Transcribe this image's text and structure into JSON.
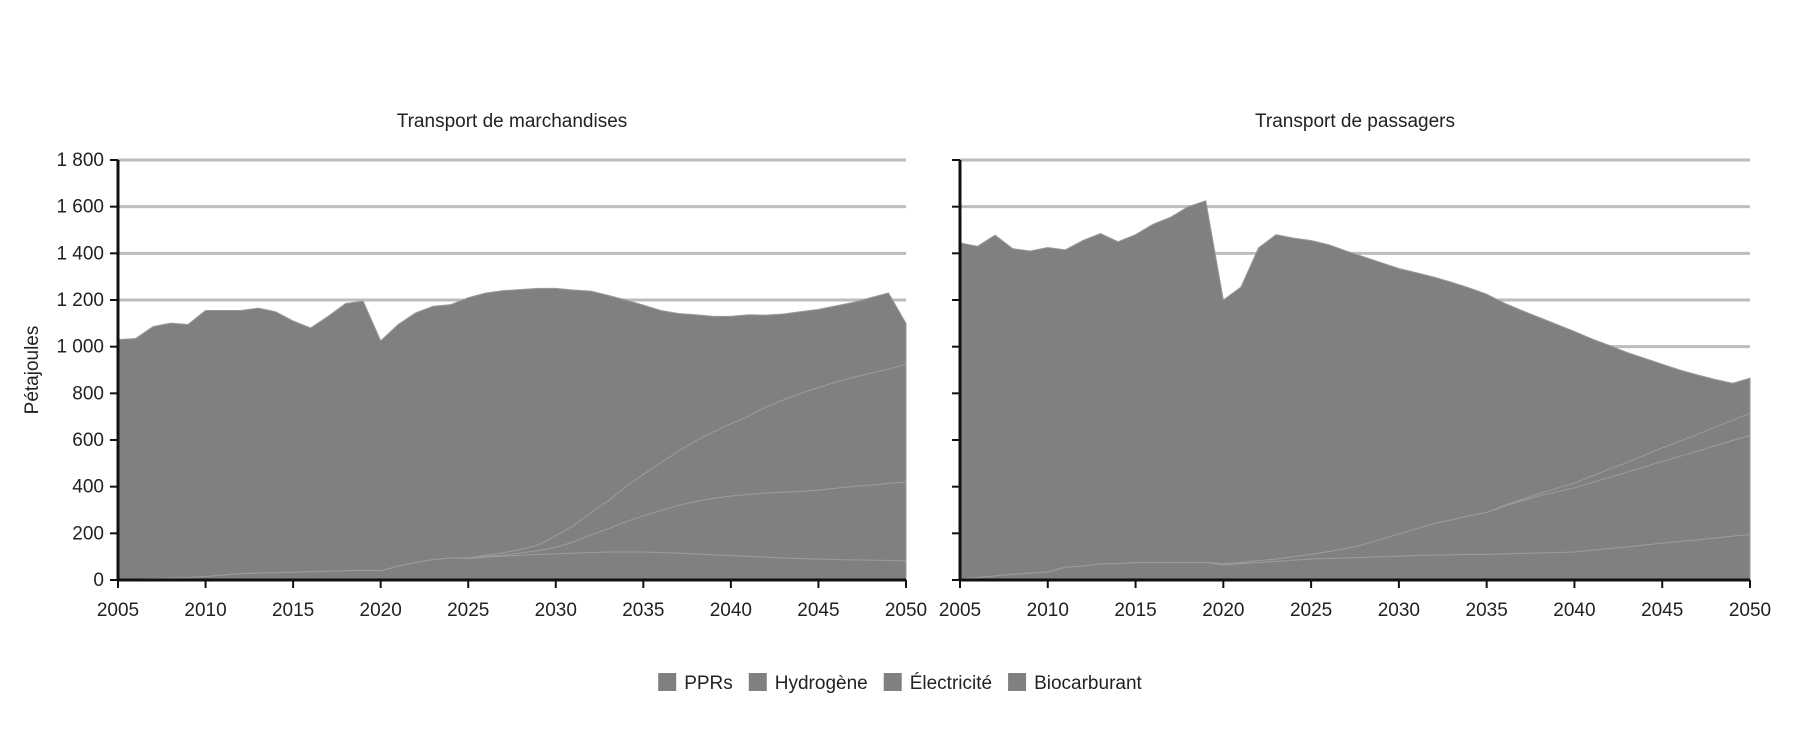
{
  "chart_data": {
    "type": "area",
    "stacked": true,
    "ylabel": "Pétajoules",
    "ylim": [
      0,
      1800
    ],
    "yticks": [
      0,
      200,
      400,
      600,
      800,
      1000,
      1200,
      1400,
      1600,
      1800
    ],
    "ytick_labels": [
      "0",
      "200",
      "400",
      "600",
      "800",
      "1 000",
      "1 200",
      "1 400",
      "1 600",
      "1 800"
    ],
    "xlim": [
      2005,
      2050
    ],
    "xticks": [
      2005,
      2010,
      2015,
      2020,
      2025,
      2030,
      2035,
      2040,
      2045,
      2050
    ],
    "grid": true,
    "legend_position": "bottom",
    "legend": [
      "PPRs",
      "Hydrogène",
      "Électricité",
      "Biocarburant"
    ],
    "colors": {
      "area": "#808080",
      "edge": "#9a9a9a",
      "grid": "#bdbdbd",
      "axis": "#111111"
    },
    "panels": [
      {
        "title": "Transport de marchandises",
        "x": [
          2005,
          2006,
          2007,
          2008,
          2009,
          2010,
          2011,
          2012,
          2013,
          2014,
          2015,
          2016,
          2017,
          2018,
          2019,
          2020,
          2021,
          2022,
          2023,
          2024,
          2025,
          2026,
          2027,
          2028,
          2029,
          2030,
          2031,
          2032,
          2033,
          2034,
          2035,
          2036,
          2037,
          2038,
          2039,
          2040,
          2041,
          2042,
          2043,
          2044,
          2045,
          2046,
          2047,
          2048,
          2049,
          2050
        ],
        "series": [
          {
            "name": "Biocarburant",
            "values": [
              5,
              5,
              6,
              8,
              10,
              15,
              22,
              28,
              30,
              32,
              34,
              36,
              38,
              40,
              42,
              40,
              60,
              75,
              88,
              95,
              92,
              98,
              102,
              106,
              110,
              112,
              115,
              118,
              120,
              120,
              120,
              118,
              115,
              112,
              108,
              105,
              102,
              98,
              95,
              92,
              90,
              88,
              86,
              85,
              84,
              82
            ]
          },
          {
            "name": "Électricité",
            "values": [
              0,
              0,
              0,
              0,
              0,
              0,
              0,
              0,
              0,
              0,
              0,
              0,
              0,
              0,
              0,
              0,
              0,
              0,
              0,
              0,
              3,
              3,
              5,
              10,
              16,
              28,
              48,
              75,
              100,
              130,
              155,
              180,
              205,
              225,
              242,
              255,
              265,
              275,
              282,
              288,
              295,
              305,
              315,
              322,
              330,
              338
            ]
          },
          {
            "name": "Hydrogène",
            "values": [
              0,
              0,
              0,
              0,
              0,
              0,
              0,
              0,
              0,
              0,
              0,
              0,
              0,
              0,
              0,
              0,
              0,
              0,
              0,
              0,
              0,
              5,
              10,
              15,
              25,
              50,
              70,
              95,
              120,
              150,
              178,
              205,
              232,
              260,
              285,
              310,
              335,
              368,
              395,
              420,
              440,
              455,
              468,
              480,
              490,
              505
            ]
          },
          {
            "name": "PPRs",
            "values": [
              1025,
              1030,
              1080,
              1093,
              1085,
              1140,
              1133,
              1127,
              1135,
              1118,
              1076,
              1044,
              1092,
              1145,
              1153,
              985,
              1035,
              1070,
              1085,
              1085,
              1115,
              1124,
              1123,
              1114,
              1099,
              1060,
              1010,
              950,
              880,
              800,
              725,
              652,
              590,
              540,
              495,
              460,
              435,
              394,
              368,
              350,
              335,
              327,
              321,
              323,
              326,
              175
            ]
          }
        ]
      },
      {
        "title": "Transport de passagers",
        "x": [
          2005,
          2006,
          2007,
          2008,
          2009,
          2010,
          2011,
          2012,
          2013,
          2014,
          2015,
          2016,
          2017,
          2018,
          2019,
          2020,
          2021,
          2022,
          2023,
          2024,
          2025,
          2026,
          2027,
          2028,
          2029,
          2030,
          2031,
          2032,
          2033,
          2034,
          2035,
          2036,
          2037,
          2038,
          2039,
          2040,
          2041,
          2042,
          2043,
          2044,
          2045,
          2046,
          2047,
          2048,
          2049,
          2050
        ],
        "series": [
          {
            "name": "Biocarburant",
            "values": [
              5,
              10,
              18,
              25,
              30,
              35,
              55,
              60,
              70,
              70,
              75,
              75,
              75,
              75,
              75,
              65,
              70,
              75,
              80,
              85,
              90,
              92,
              95,
              97,
              100,
              102,
              105,
              107,
              108,
              110,
              110,
              112,
              114,
              116,
              118,
              120,
              128,
              135,
              142,
              150,
              158,
              165,
              172,
              180,
              188,
              195
            ]
          },
          {
            "name": "Électricité",
            "values": [
              0,
              0,
              0,
              0,
              0,
              0,
              0,
              0,
              0,
              0,
              0,
              0,
              0,
              0,
              0,
              5,
              5,
              8,
              10,
              15,
              20,
              30,
              40,
              55,
              75,
              95,
              115,
              135,
              150,
              165,
              180,
              205,
              225,
              245,
              260,
              275,
              290,
              305,
              320,
              335,
              350,
              365,
              380,
              395,
              410,
              425
            ]
          },
          {
            "name": "Hydrogène",
            "values": [
              0,
              0,
              0,
              0,
              0,
              0,
              0,
              0,
              0,
              0,
              0,
              0,
              0,
              0,
              0,
              0,
              0,
              0,
              0,
              0,
              0,
              0,
              0,
              0,
              0,
              0,
              0,
              0,
              0,
              0,
              0,
              3,
              6,
              10,
              15,
              20,
              28,
              35,
              42,
              50,
              58,
              65,
              72,
              80,
              87,
              95
            ]
          },
          {
            "name": "PPRs",
            "values": [
              1440,
              1420,
              1460,
              1395,
              1380,
              1390,
              1360,
              1395,
              1415,
              1380,
              1405,
              1450,
              1480,
              1525,
              1550,
              1130,
              1180,
              1340,
              1390,
              1365,
              1345,
              1315,
              1275,
              1233,
              1185,
              1138,
              1097,
              1056,
              1018,
              977,
              935,
              867,
              810,
              754,
              702,
              650,
              587,
              530,
              471,
              415,
              359,
              305,
              255,
              205,
              158,
              150
            ]
          }
        ]
      }
    ]
  }
}
